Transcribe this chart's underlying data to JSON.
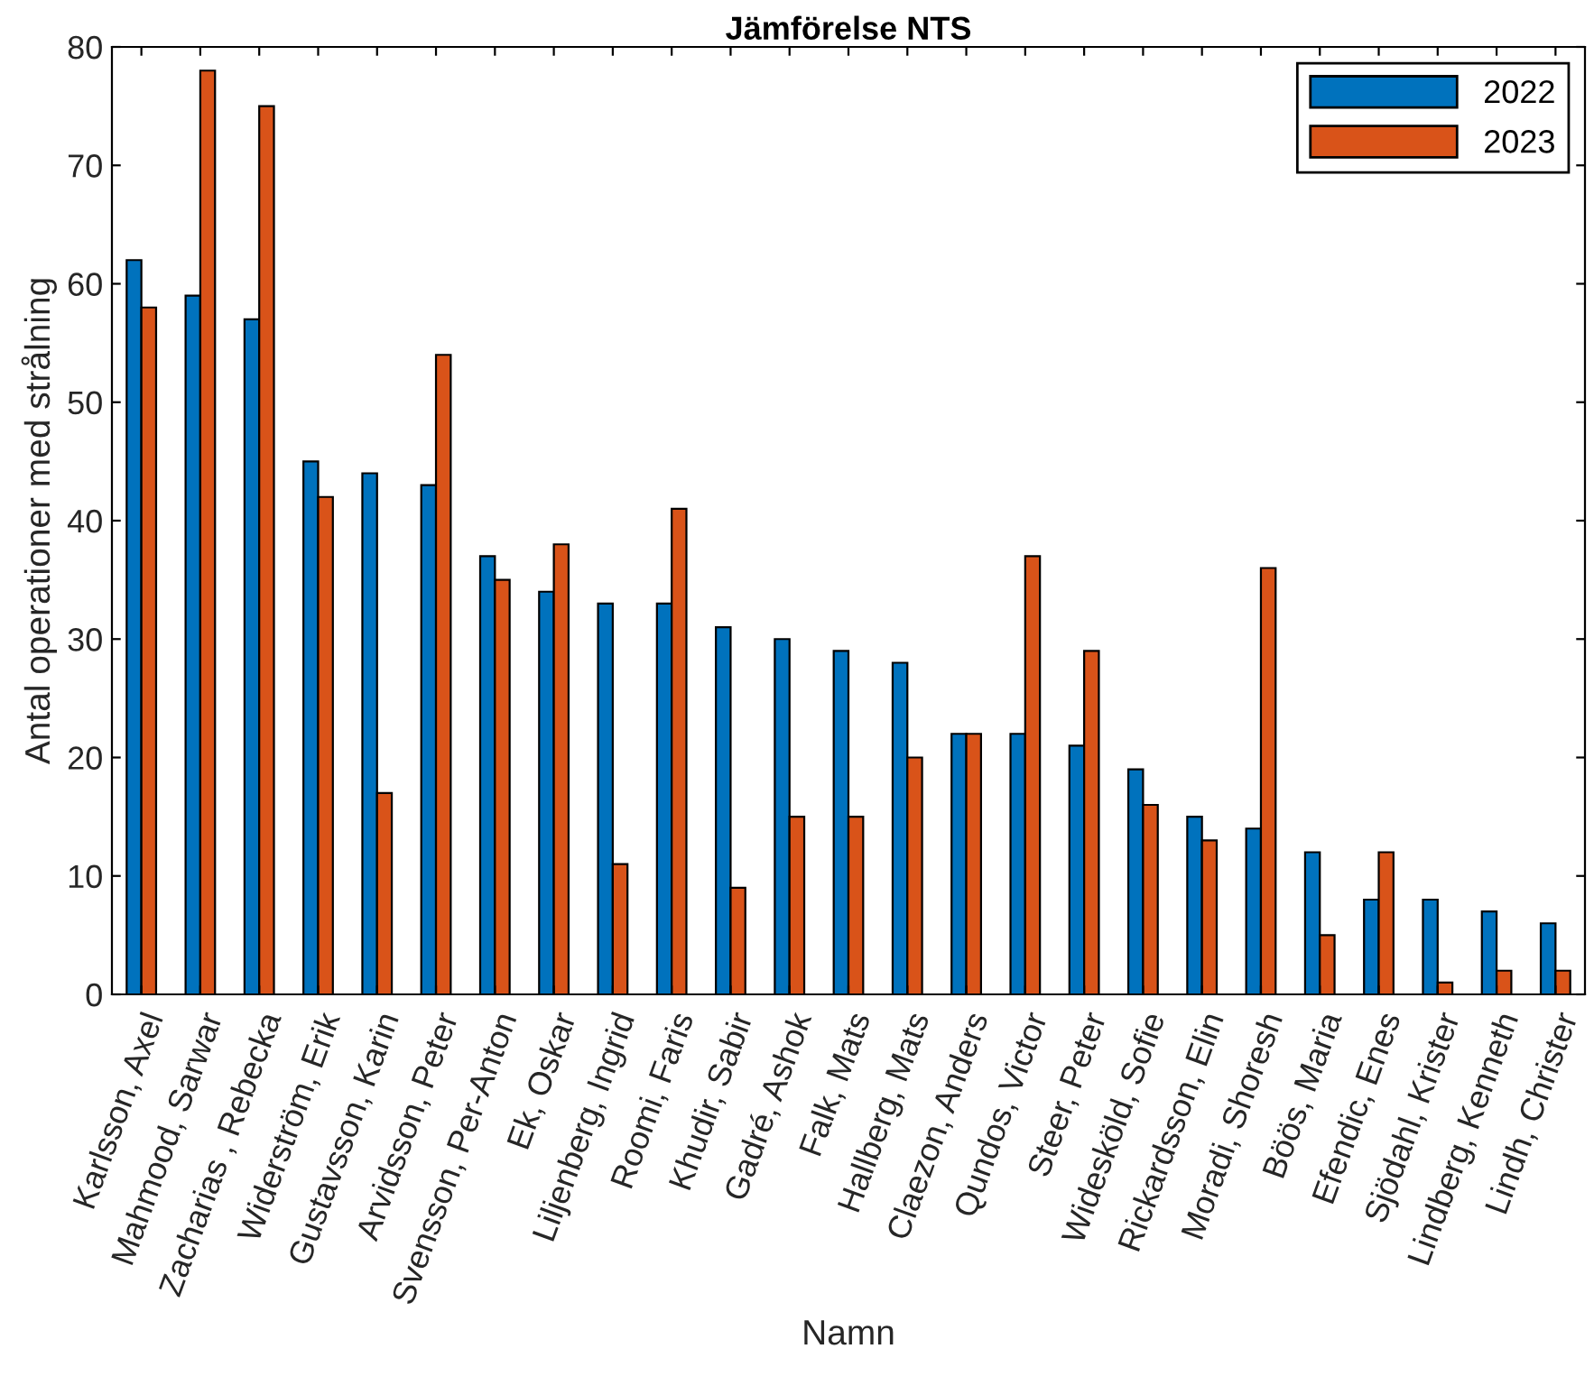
{
  "chart_data": {
    "type": "bar",
    "title": "Jämförelse NTS",
    "xlabel": "Namn",
    "ylabel": "Antal operationer med strålning",
    "categories": [
      "Karlsson, Axel",
      "Mahmood, Sarwar",
      "Zacharias , Rebecka",
      "Widerström, Erik",
      "Gustavsson, Karin",
      "Arvidsson, Peter",
      "Svensson, Per-Anton",
      "Ek, Oskar",
      "Liljenberg, Ingrid",
      "Roomi, Faris",
      "Khudir, Sabir",
      "Gadré, Ashok",
      "Falk, Mats",
      "Hallberg, Mats",
      "Claezon, Anders",
      "Qundos, Victor",
      "Steer, Peter",
      "Widesköld, Sofie",
      "Rickardsson, Elin",
      "Moradi, Shoresh",
      "Böös, Maria",
      "Efendic, Enes",
      "Sjödahl, Krister",
      "Lindberg, Kenneth",
      "Lindh, Christer"
    ],
    "series": [
      {
        "name": "2022",
        "color": "#0072bd",
        "values": [
          62,
          59,
          57,
          45,
          44,
          43,
          37,
          34,
          33,
          33,
          31,
          30,
          29,
          28,
          22,
          22,
          21,
          19,
          15,
          14,
          12,
          8,
          8,
          7,
          6
        ]
      },
      {
        "name": "2023",
        "color": "#d95319",
        "values": [
          58,
          78,
          75,
          42,
          17,
          54,
          35,
          38,
          11,
          41,
          9,
          15,
          15,
          20,
          22,
          37,
          29,
          16,
          13,
          36,
          5,
          12,
          1,
          2,
          2
        ]
      }
    ],
    "ylim": [
      0,
      80
    ],
    "yticks": [
      0,
      10,
      20,
      30,
      40,
      50,
      60,
      70,
      80
    ],
    "grid": false,
    "legend": "top right"
  }
}
